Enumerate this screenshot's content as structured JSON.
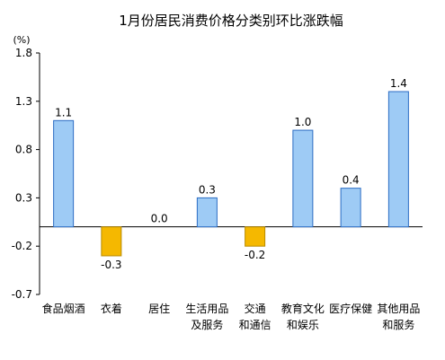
{
  "chart_data": {
    "type": "bar",
    "title": "1月份居民消费价格分类别环比涨跌幅",
    "unit_label": "(%)",
    "xlabel": "",
    "ylabel": "",
    "categories": [
      [
        "食品烟酒"
      ],
      [
        "衣着"
      ],
      [
        "居住"
      ],
      [
        "生活用品",
        "及服务"
      ],
      [
        "交通",
        "和通信"
      ],
      [
        "教育文化",
        "和娱乐"
      ],
      [
        "医疗保健"
      ],
      [
        "其他用品",
        "和服务"
      ]
    ],
    "values": [
      1.1,
      -0.3,
      0.0,
      0.3,
      -0.2,
      1.0,
      0.4,
      1.4
    ],
    "value_labels": [
      "1.1",
      "-0.3",
      "0.0",
      "0.3",
      "-0.2",
      "1.0",
      "0.4",
      "1.4"
    ],
    "ylim": [
      -0.7,
      1.8
    ],
    "yticks": [
      "1.8",
      "1.3",
      "0.8",
      "0.3",
      "-0.2",
      "-0.7"
    ],
    "ytick_values": [
      1.8,
      1.3,
      0.8,
      0.3,
      -0.2,
      -0.7
    ],
    "grid": false,
    "legend": "none",
    "colors": {
      "positive": "#9ecbf5",
      "positive_edge": "#2b6cc4",
      "negative": "#f5b800",
      "negative_edge": "#b88a00",
      "axis": "#000000"
    }
  }
}
